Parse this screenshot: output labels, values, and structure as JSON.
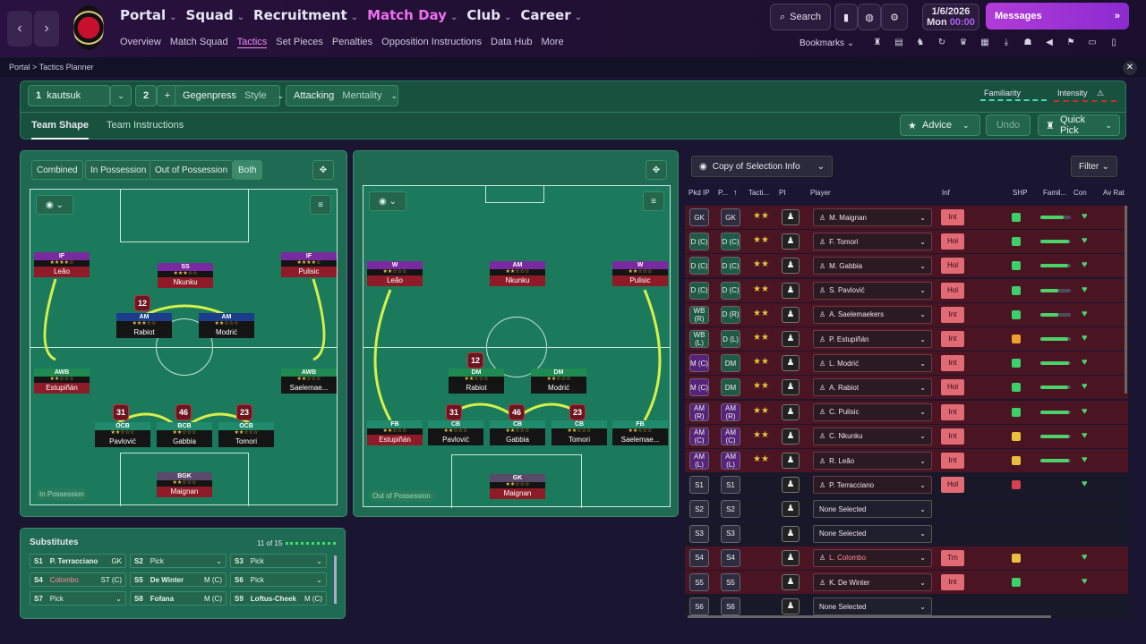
{
  "header": {
    "main_nav": [
      "Portal",
      "Squad",
      "Recruitment",
      "Match Day",
      "Club",
      "Career"
    ],
    "active_main": "Match Day",
    "sub_nav": [
      "Overview",
      "Match Squad",
      "Tactics",
      "Set Pieces",
      "Penalties",
      "Opposition Instructions",
      "Data Hub",
      "More"
    ],
    "active_sub": "Tactics",
    "search_label": "Search",
    "date": "1/6/2026",
    "day": "Mon",
    "time": "00:00",
    "messages_label": "Messages",
    "bookmarks_label": "Bookmarks"
  },
  "breadcrumb": [
    "Portal",
    "Tactics Planner"
  ],
  "tactic_bar": {
    "slot1": "1",
    "tactic_name": "kautsuk",
    "slot2": "2",
    "add": "+",
    "style_value": "Gegenpress",
    "style_label": "Style",
    "mentality_value": "Attacking",
    "mentality_label": "Mentality",
    "familiarity": "Familiarity",
    "intensity": "Intensity",
    "tabs": [
      "Team Shape",
      "Team Instructions"
    ],
    "advice": "Advice",
    "undo": "Undo",
    "quick_pick": "Quick Pick"
  },
  "pitch_modes": [
    "Combined",
    "In Possession",
    "Out of Possession",
    "Both"
  ],
  "pitch_labels": {
    "in_possession": "In Possession",
    "out_possession": "Out of Possession"
  },
  "in_possession_players": [
    {
      "role": "IF",
      "stars": "★★★★☆",
      "name": "Leão"
    },
    {
      "role": "SS",
      "stars": "★★★☆☆",
      "name": "Nkunku"
    },
    {
      "role": "IF",
      "stars": "★★★★☆",
      "name": "Pulisic"
    },
    {
      "role": "AM",
      "stars": "★★★☆☆",
      "name": "Rabiot"
    },
    {
      "role": "AM",
      "stars": "★★☆☆☆",
      "name": "Modrić"
    },
    {
      "role": "AWB",
      "stars": "★★☆☆☆",
      "name": "Estupiñán"
    },
    {
      "role": "AWB",
      "stars": "★★☆☆☆",
      "name": "Saelemae..."
    },
    {
      "role": "OCB",
      "stars": "★★☆☆☆",
      "name": "Pavlović"
    },
    {
      "role": "BCB",
      "stars": "★★☆☆☆",
      "name": "Gabbia"
    },
    {
      "role": "OCB",
      "stars": "★★☆☆☆",
      "name": "Tomori"
    },
    {
      "role": "BGK",
      "stars": "★★☆☆☆",
      "name": "Maignan"
    }
  ],
  "out_possession_players": [
    {
      "role": "W",
      "stars": "★★☆☆☆",
      "name": "Leão"
    },
    {
      "role": "AM",
      "stars": "★★☆☆☆",
      "name": "Nkunku"
    },
    {
      "role": "W",
      "stars": "★★☆☆☆",
      "name": "Pulisic"
    },
    {
      "role": "DM",
      "stars": "★★☆☆☆",
      "name": "Rabiot"
    },
    {
      "role": "DM",
      "stars": "★★☆☆☆",
      "name": "Modrić"
    },
    {
      "role": "FB",
      "stars": "★★☆☆☆",
      "name": "Estupiñán"
    },
    {
      "role": "CB",
      "stars": "★★☆☆☆",
      "name": "Pavlović"
    },
    {
      "role": "CB",
      "stars": "★★☆☆☆",
      "name": "Gabbia"
    },
    {
      "role": "CB",
      "stars": "★★☆☆☆",
      "name": "Tomori"
    },
    {
      "role": "FB",
      "stars": "★★☆☆☆",
      "name": "Saelemae..."
    },
    {
      "role": "GK",
      "stars": "★★☆☆☆",
      "name": "Maignan"
    }
  ],
  "shirt_numbers": [
    "12",
    "31",
    "46",
    "23"
  ],
  "substitutes": {
    "title": "Substitutes",
    "count": "11 of 15",
    "slots": [
      {
        "id": "S1",
        "name": "P. Terracciano",
        "pos": "GK"
      },
      {
        "id": "S2",
        "name": "Pick",
        "pos": ""
      },
      {
        "id": "S3",
        "name": "Pick",
        "pos": ""
      },
      {
        "id": "S4",
        "name": "Colombo",
        "pos": "ST (C)"
      },
      {
        "id": "S5",
        "name": "De Winter",
        "pos": "M (C)"
      },
      {
        "id": "S6",
        "name": "Pick",
        "pos": ""
      },
      {
        "id": "S7",
        "name": "Pick",
        "pos": ""
      },
      {
        "id": "S8",
        "name": "Fofana",
        "pos": "M (C)"
      },
      {
        "id": "S9",
        "name": "Loftus-Cheek",
        "pos": "M (C)"
      }
    ]
  },
  "selection": {
    "copy_label": "Copy of Selection Info",
    "filter_label": "Filter",
    "columns": [
      "Pkd IP",
      "P...",
      "Tacti...",
      "PI",
      "Player",
      "Inf",
      "SHP",
      "Famil...",
      "Con",
      "Av Rat"
    ],
    "rows": [
      {
        "ip": "GK",
        "op": "GK",
        "tac": "★★",
        "player": "M. Maignan",
        "inf": "Int",
        "fam": 75
      },
      {
        "ip": "D (C)",
        "op": "D (C)",
        "tac": "★★",
        "player": "F. Tomori",
        "inf": "Hol",
        "fam": 95
      },
      {
        "ip": "D (C)",
        "op": "D (C)",
        "tac": "★★",
        "player": "M. Gabbia",
        "inf": "Hol",
        "fam": 90
      },
      {
        "ip": "D (C)",
        "op": "D (C)",
        "tac": "★★",
        "player": "S. Pavlović",
        "inf": "Hol",
        "fam": 60
      },
      {
        "ip": "WB (R)",
        "op": "D (R)",
        "tac": "★★",
        "player": "A. Saelemaekers",
        "inf": "Int",
        "fam": 60
      },
      {
        "ip": "WB (L)",
        "op": "D (L)",
        "tac": "★★",
        "player": "P. Estupiñán",
        "inf": "Int",
        "fam": 90
      },
      {
        "ip": "M (C)",
        "op": "DM",
        "tac": "★★",
        "player": "L. Modrić",
        "inf": "Int",
        "fam": 95
      },
      {
        "ip": "M (C)",
        "op": "DM",
        "tac": "★★",
        "player": "A. Rabiot",
        "inf": "Hol",
        "fam": 90
      },
      {
        "ip": "AM (R)",
        "op": "AM (R)",
        "tac": "★★",
        "player": "C. Pulisic",
        "inf": "Int",
        "fam": 95
      },
      {
        "ip": "AM (C)",
        "op": "AM (C)",
        "tac": "★★",
        "player": "C. Nkunku",
        "inf": "Int",
        "fam": 95
      },
      {
        "ip": "AM (L)",
        "op": "AM (L)",
        "tac": "★★",
        "player": "R. Leão",
        "inf": "Int",
        "fam": 95
      },
      {
        "ip": "S1",
        "op": "S1",
        "tac": "",
        "player": "P. Terracciano",
        "inf": "Hol",
        "fam": 0
      },
      {
        "ip": "S2",
        "op": "S2",
        "tac": "",
        "player": "None Selected",
        "inf": "",
        "fam": 0
      },
      {
        "ip": "S3",
        "op": "S3",
        "tac": "",
        "player": "None Selected",
        "inf": "",
        "fam": 0
      },
      {
        "ip": "S4",
        "op": "S4",
        "tac": "",
        "player": "L. Colombo",
        "inf": "Trn",
        "fam": 0
      },
      {
        "ip": "S5",
        "op": "S5",
        "tac": "",
        "player": "K. De Winter",
        "inf": "Int",
        "fam": 0
      },
      {
        "ip": "S6",
        "op": "S6",
        "tac": "",
        "player": "None Selected",
        "inf": "",
        "fam": 0
      }
    ]
  }
}
